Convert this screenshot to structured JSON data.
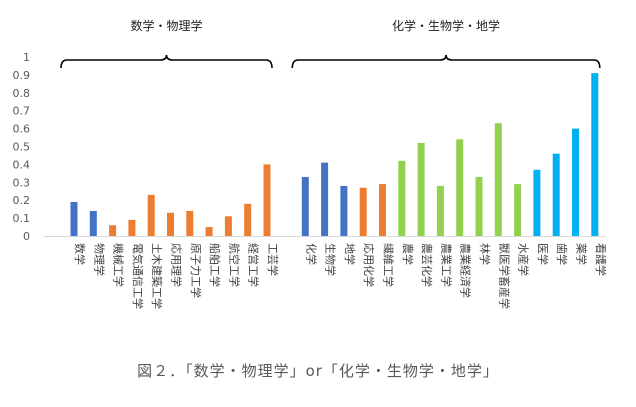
{
  "caption": "図２．「数学・物理学」or「化学・生物学・地学」",
  "chart_data": {
    "type": "bar",
    "ylim": [
      0,
      1
    ],
    "yticks": [
      "0",
      "0.1",
      "0.2",
      "0.3",
      "0.4",
      "0.5",
      "0.6",
      "0.7",
      "0.8",
      "0.9",
      "1"
    ],
    "groups": [
      {
        "label": "数学・物理学",
        "start": 0,
        "end": 10
      },
      {
        "label": "化学・生物学・地学",
        "start": 11,
        "end": 26
      }
    ],
    "categories": [
      "数学",
      "物理学",
      "機械工学",
      "電気通信工学",
      "土木建築工学",
      "応用理学",
      "原子力工学",
      "船舶工学",
      "航空工学",
      "経営工学",
      "工芸学",
      "化学",
      "生物学",
      "地学",
      "応用化学",
      "繊維工学",
      "農学",
      "農芸化学",
      "農業工学",
      "農業経済学",
      "林学",
      "獣医学畜産学",
      "水産学",
      "医学",
      "歯学",
      "薬学",
      "看護学"
    ],
    "values": [
      0.19,
      0.14,
      0.06,
      0.09,
      0.23,
      0.13,
      0.14,
      0.05,
      0.11,
      0.18,
      0.4,
      0.33,
      0.41,
      0.28,
      0.27,
      0.29,
      0.42,
      0.52,
      0.28,
      0.54,
      0.33,
      0.63,
      0.29,
      0.37,
      0.46,
      0.6,
      0.91
    ],
    "color_keys": [
      "blue",
      "blue",
      "orange",
      "orange",
      "orange",
      "orange",
      "orange",
      "orange",
      "orange",
      "orange",
      "orange",
      "blue",
      "blue",
      "blue",
      "orange",
      "orange",
      "green",
      "green",
      "green",
      "green",
      "green",
      "green",
      "green",
      "cyan",
      "cyan",
      "cyan",
      "cyan"
    ],
    "colors": {
      "blue": "#4472C4",
      "orange": "#ED7D31",
      "green": "#92D050",
      "cyan": "#00B0F0"
    },
    "grid": false,
    "legend": "none"
  }
}
